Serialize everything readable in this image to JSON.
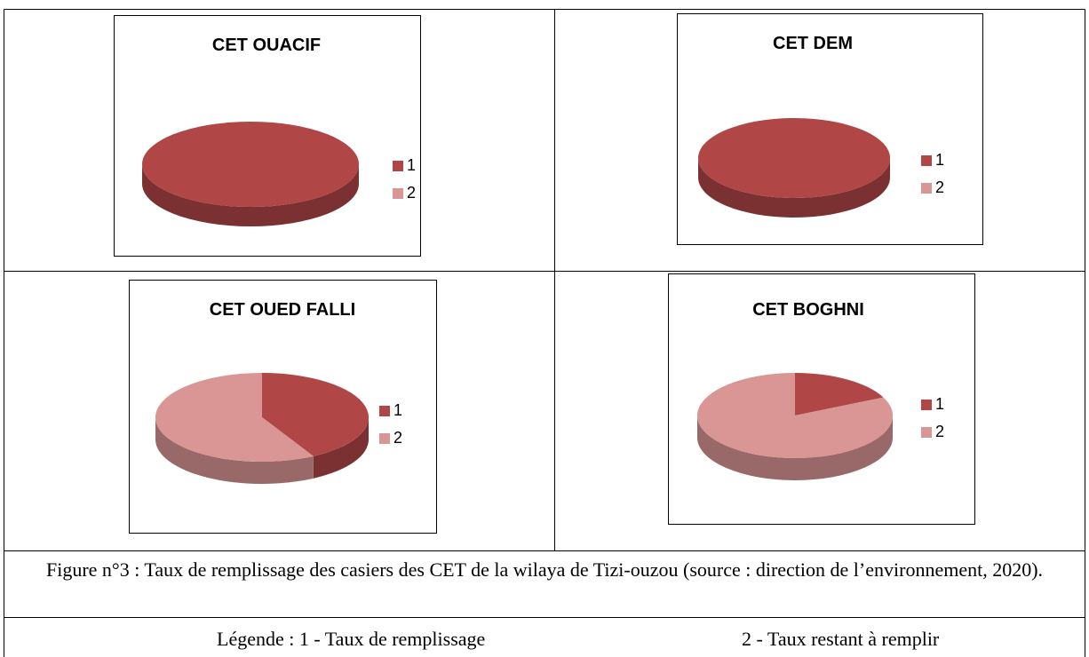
{
  "chart_data": [
    {
      "type": "pie",
      "title": "CET OUACIF",
      "categories": [
        "1",
        "2"
      ],
      "values": [
        100,
        0
      ],
      "colors": [
        "#b04646",
        "#d99694"
      ]
    },
    {
      "type": "pie",
      "title": "CET DEM",
      "categories": [
        "1",
        "2"
      ],
      "values": [
        100,
        0
      ],
      "colors": [
        "#b04646",
        "#d99694"
      ]
    },
    {
      "type": "pie",
      "title": "CET OUED FALLI",
      "categories": [
        "1",
        "2"
      ],
      "values": [
        42,
        58
      ],
      "colors": [
        "#b04646",
        "#d99694"
      ]
    },
    {
      "type": "pie",
      "title": "CET BOGHNI",
      "categories": [
        "1",
        "2"
      ],
      "values": [
        18,
        82
      ],
      "colors": [
        "#b04646",
        "#d99694"
      ]
    }
  ],
  "caption": "Figure n°3 : Taux de remplissage des casiers des CET de la wilaya de Tizi-ouzou (source : direction de l’environnement, 2020).",
  "legend_row": {
    "left": "Légende : 1 - Taux de remplissage",
    "right": "2 - Taux restant à remplir"
  }
}
